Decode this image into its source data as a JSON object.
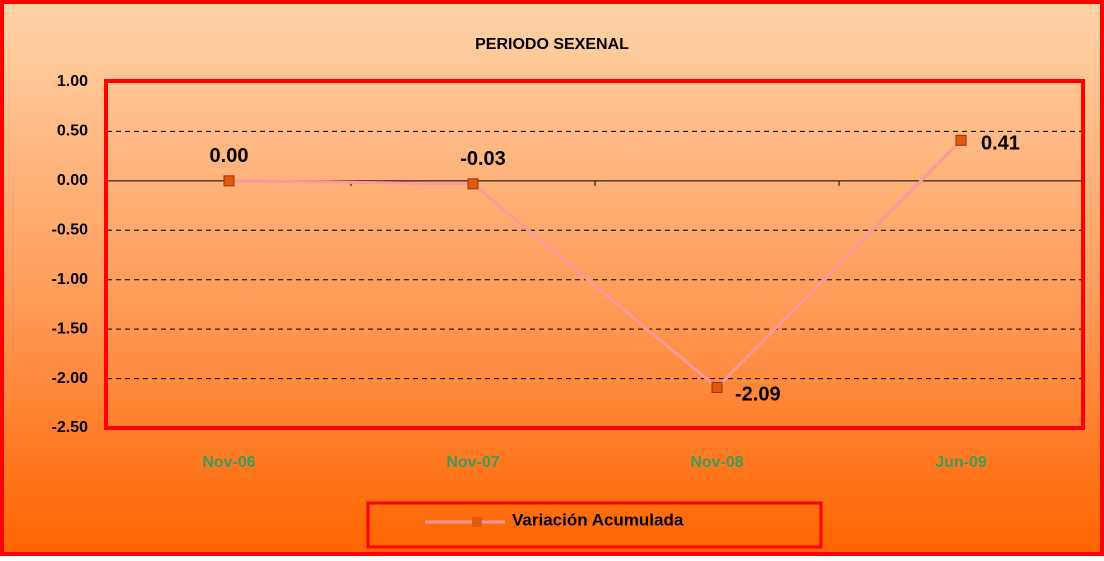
{
  "chart_data": {
    "type": "line",
    "title": "PERIODO SEXENAL",
    "categories": [
      "Nov-06",
      "Nov-07",
      "Nov-08",
      "Jun-09"
    ],
    "series": [
      {
        "name": "Variación Acumulada",
        "color": "#ff9999",
        "marker_color": "#e05a10",
        "values": [
          0,
          -0.03,
          -2.09,
          0.41
        ],
        "value_labels": [
          "0.00",
          "-0.03",
          "-2.09",
          "0.41"
        ]
      }
    ],
    "ylim": [
      -2.5,
      1.0
    ],
    "yticks": [
      {
        "value": -2.5,
        "label": "-2.50"
      },
      {
        "value": -2.0,
        "label": "-2.00"
      },
      {
        "value": -1.5,
        "label": "-1.50"
      },
      {
        "value": -1.0,
        "label": "-1.00"
      },
      {
        "value": -0.5,
        "label": "-0.50"
      },
      {
        "value": 0,
        "label": "0.00"
      },
      {
        "value": 0.5,
        "label": "0.50"
      },
      {
        "value": 1.0,
        "label": "1.00"
      }
    ],
    "grid": true,
    "legend": "bottom"
  }
}
